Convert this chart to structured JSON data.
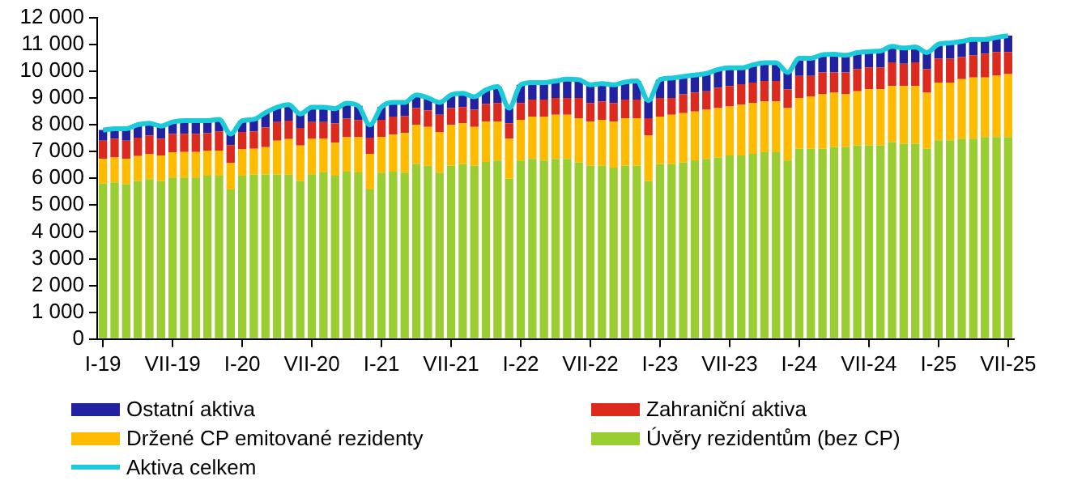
{
  "chart_data": {
    "type": "bar",
    "stacked": true,
    "legend": "bottom",
    "grid": false,
    "categories": [
      "I-19",
      null,
      null,
      null,
      null,
      null,
      "VII-19",
      null,
      null,
      null,
      null,
      null,
      "I-20",
      null,
      null,
      null,
      null,
      null,
      "VII-20",
      null,
      null,
      null,
      null,
      null,
      "I-21",
      null,
      null,
      null,
      null,
      null,
      "VII-21",
      null,
      null,
      null,
      null,
      null,
      "I-22",
      null,
      null,
      null,
      null,
      null,
      "VII-22",
      null,
      null,
      null,
      null,
      null,
      "I-23",
      null,
      null,
      null,
      null,
      null,
      "VII-23",
      null,
      null,
      null,
      null,
      null,
      "I-24",
      null,
      null,
      null,
      null,
      null,
      "VII-24",
      null,
      null,
      null,
      null,
      null,
      "I-25",
      null,
      null,
      null,
      null,
      null,
      "VII-25"
    ],
    "ylim": [
      0,
      12000
    ],
    "yticks": [
      0,
      {
        "value": 1000,
        "label": "1 000"
      },
      {
        "value": 2000,
        "label": "2 000"
      },
      {
        "value": 3000,
        "label": "3 000"
      },
      {
        "value": 4000,
        "label": "4 000"
      },
      {
        "value": 5000,
        "label": "5 000"
      },
      {
        "value": 6000,
        "label": "6 000"
      },
      {
        "value": 7000,
        "label": "7 000"
      },
      {
        "value": 8000,
        "label": "8 000"
      },
      {
        "value": 9000,
        "label": "9 000"
      },
      {
        "value": 10000,
        "label": "10 000"
      },
      {
        "value": 11000,
        "label": "11 000"
      },
      {
        "value": 12000,
        "label": "12 000"
      }
    ],
    "series": [
      {
        "name": "Úvěry rezidentům (bez CP)",
        "color": "#9acd32",
        "values": [
          5800,
          5850,
          5780,
          5900,
          5970,
          5900,
          6030,
          6030,
          6030,
          6100,
          6100,
          5580,
          6100,
          6140,
          6140,
          6140,
          6140,
          5900,
          6150,
          6220,
          6100,
          6250,
          6220,
          5580,
          6210,
          6250,
          6210,
          6530,
          6470,
          6210,
          6470,
          6530,
          6470,
          6610,
          6660,
          5980,
          6660,
          6720,
          6660,
          6720,
          6720,
          6590,
          6470,
          6470,
          6400,
          6470,
          6470,
          5890,
          6530,
          6530,
          6590,
          6670,
          6720,
          6780,
          6850,
          6850,
          6910,
          6970,
          6970,
          6660,
          7100,
          7100,
          7100,
          7160,
          7160,
          7230,
          7230,
          7230,
          7350,
          7290,
          7290,
          7100,
          7420,
          7420,
          7480,
          7480,
          7540,
          7540,
          7540
        ]
      },
      {
        "name": "Držené CP emitované rezidenty",
        "color": "#ffbb00",
        "values": [
          920,
          930,
          940,
          930,
          930,
          950,
          940,
          950,
          950,
          930,
          930,
          990,
          980,
          960,
          1020,
          1260,
          1320,
          1320,
          1320,
          1250,
          1230,
          1280,
          1310,
          1330,
          1330,
          1380,
          1480,
          1460,
          1450,
          1520,
          1520,
          1520,
          1450,
          1500,
          1450,
          1500,
          1520,
          1580,
          1640,
          1650,
          1650,
          1650,
          1640,
          1710,
          1710,
          1770,
          1770,
          1720,
          1770,
          1840,
          1840,
          1820,
          1840,
          1840,
          1830,
          1900,
          1900,
          1900,
          1900,
          1960,
          1900,
          1960,
          2030,
          2030,
          1970,
          2020,
          2090,
          2090,
          2090,
          2150,
          2150,
          2090,
          2150,
          2150,
          2220,
          2280,
          2220,
          2290,
          2350
        ]
      },
      {
        "name": "Zahraniční aktiva",
        "color": "#dc2a1e",
        "values": [
          680,
          690,
          680,
          690,
          700,
          630,
          680,
          680,
          680,
          650,
          720,
          660,
          650,
          640,
          740,
          700,
          690,
          660,
          630,
          630,
          720,
          700,
          640,
          610,
          640,
          670,
          630,
          630,
          620,
          640,
          630,
          610,
          640,
          660,
          700,
          570,
          630,
          640,
          640,
          630,
          630,
          760,
          700,
          690,
          700,
          700,
          700,
          630,
          700,
          630,
          700,
          710,
          690,
          760,
          760,
          760,
          760,
          760,
          760,
          700,
          820,
          760,
          820,
          760,
          820,
          830,
          820,
          820,
          890,
          830,
          890,
          890,
          890,
          890,
          820,
          830,
          890,
          880,
          820
        ]
      },
      {
        "name": "Ostatní aktiva",
        "color": "#2222a0",
        "values": [
          400,
          380,
          450,
          480,
          450,
          470,
          450,
          490,
          490,
          470,
          450,
          420,
          420,
          460,
          550,
          550,
          600,
          520,
          550,
          550,
          550,
          570,
          530,
          470,
          480,
          530,
          510,
          490,
          460,
          460,
          490,
          510,
          480,
          530,
          610,
          570,
          680,
          630,
          630,
          630,
          700,
          680,
          680,
          660,
          680,
          650,
          690,
          660,
          680,
          740,
          670,
          650,
          660,
          680,
          680,
          610,
          660,
          680,
          680,
          630,
          660,
          660,
          660,
          680,
          640,
          610,
          590,
          610,
          590,
          590,
          570,
          610,
          540,
          590,
          590,
          590,
          530,
          550,
          610
        ]
      },
      {
        "name": "Aktiva celkem",
        "type": "line",
        "color": "#1ccad8",
        "values": [
          7800,
          7850,
          7850,
          8000,
          8050,
          7950,
          8100,
          8150,
          8150,
          8150,
          8200,
          7650,
          8150,
          8200,
          8450,
          8650,
          8750,
          8400,
          8650,
          8650,
          8600,
          8800,
          8700,
          7990,
          8660,
          8830,
          8830,
          9110,
          9000,
          8830,
          9110,
          9170,
          9040,
          9300,
          9420,
          8620,
          9490,
          9570,
          9570,
          9630,
          9700,
          9680,
          9490,
          9530,
          9490,
          9590,
          9630,
          8900,
          9680,
          9740,
          9800,
          9850,
          9910,
          10060,
          10120,
          10120,
          10230,
          10310,
          10310,
          9950,
          10480,
          10480,
          10610,
          10630,
          10590,
          10690,
          10730,
          10750,
          10920,
          10860,
          10900,
          10690,
          11000,
          11050,
          11110,
          11180,
          11180,
          11260,
          11320
        ]
      }
    ]
  }
}
